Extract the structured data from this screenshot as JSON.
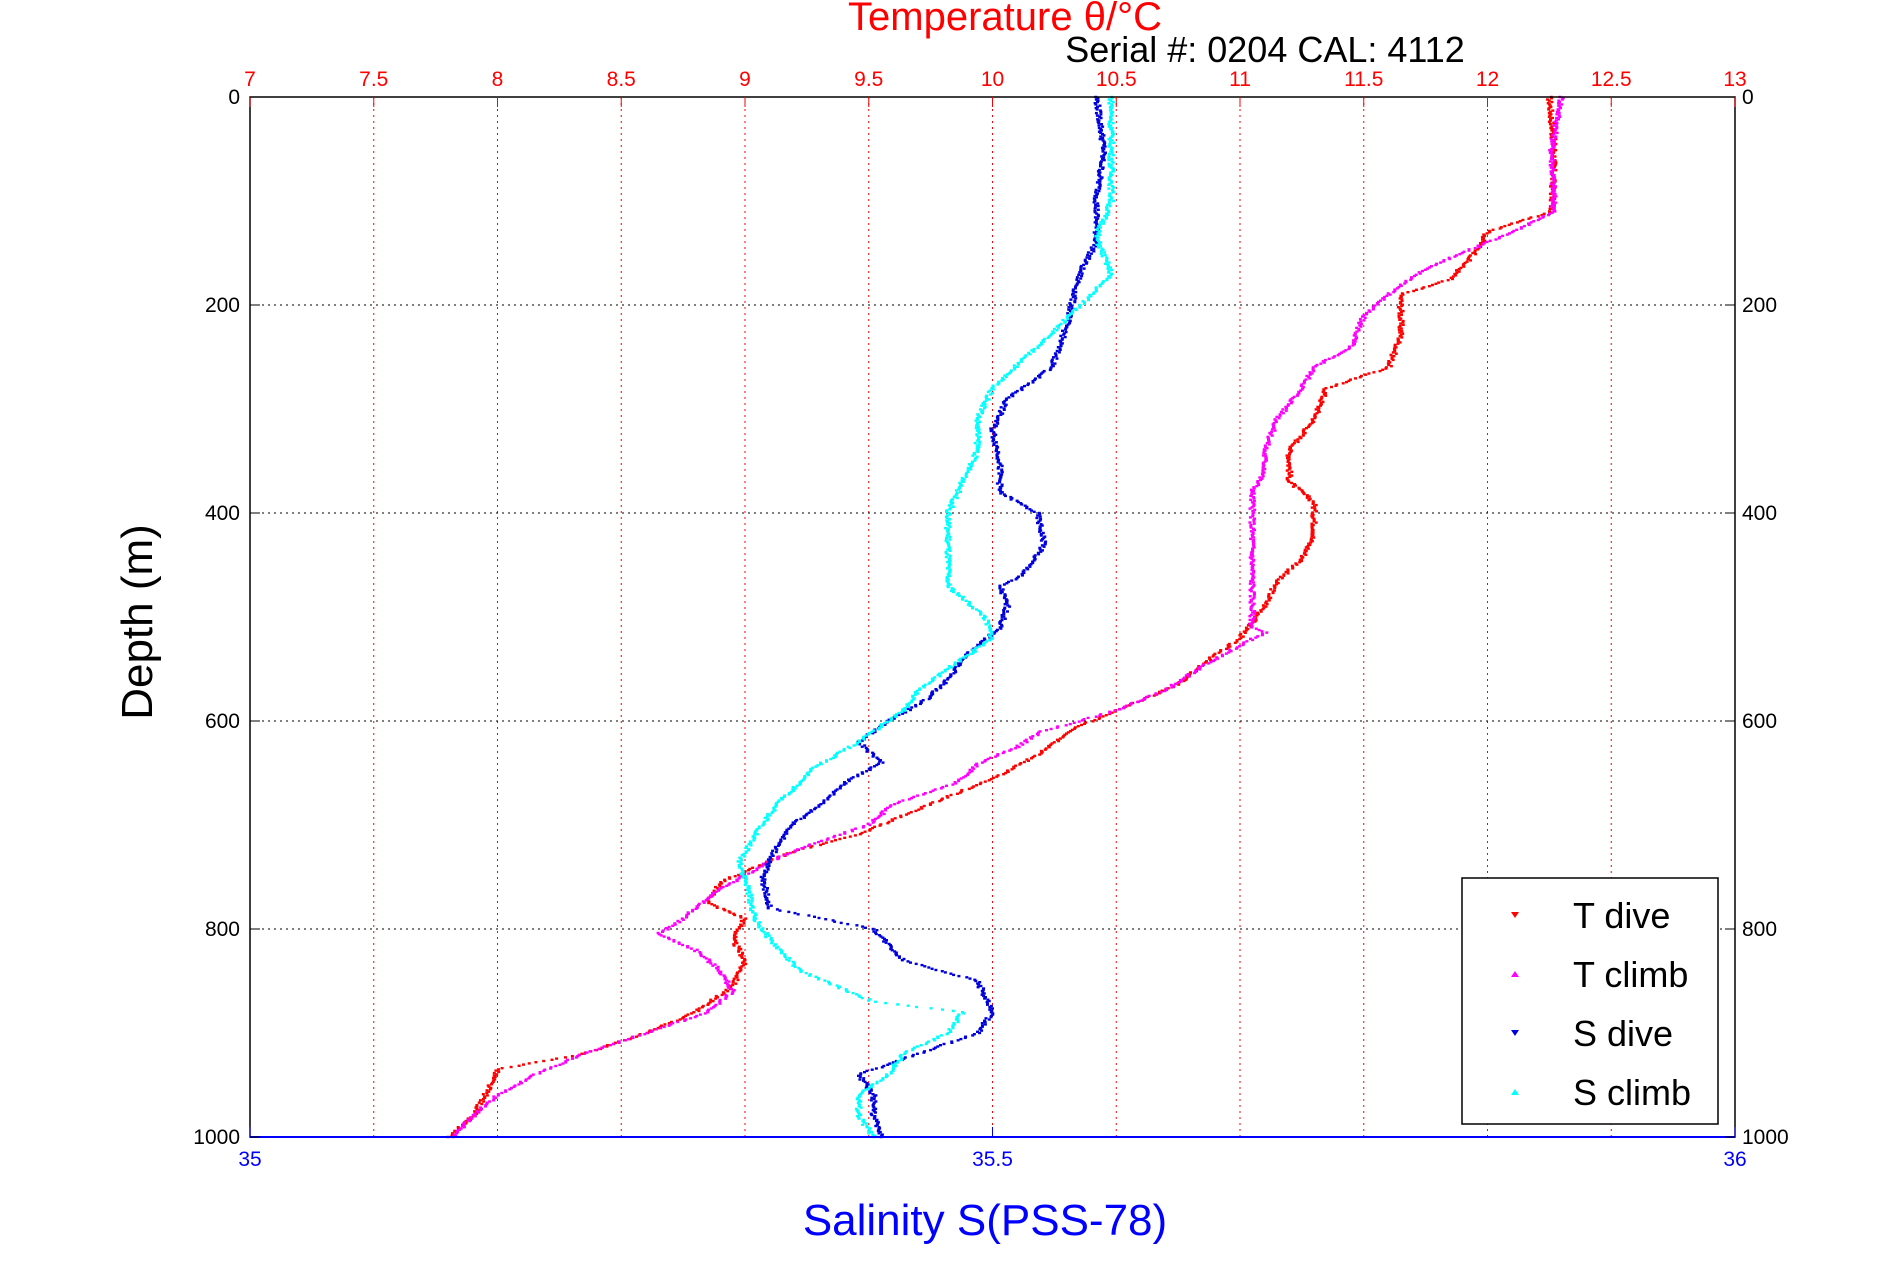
{
  "chart_data": {
    "type": "scatter",
    "title": "Temperature θ/°C",
    "subtitle": "Serial #: 0204  CAL: 4112",
    "ylabel": "Depth (m)",
    "xlabel": "Salinity S(PSS-78)",
    "depth_range": [
      0,
      1000
    ],
    "depth_ticks": [
      0,
      200,
      400,
      600,
      800,
      1000
    ],
    "temperature_range": [
      7,
      13
    ],
    "temperature_ticks": [
      7,
      7.5,
      8,
      8.5,
      9,
      9.5,
      10,
      10.5,
      11,
      11.5,
      12,
      12.5,
      13
    ],
    "salinity_range": [
      35,
      36
    ],
    "salinity_ticks": [
      35,
      35.5,
      36
    ],
    "grid": true,
    "legend_placement": "bottom-right",
    "colors": {
      "temperature_axis": "#ff0000",
      "salinity_axis": "#0000ff",
      "t_dive": "#ff0000",
      "t_climb": "#ff00ff",
      "s_dive": "#0000dd",
      "s_climb": "#00ffff"
    },
    "series": [
      {
        "name": "T dive",
        "axis": "temperature",
        "points": [
          [
            12.25,
            0
          ],
          [
            12.27,
            50
          ],
          [
            12.26,
            110
          ],
          [
            12.0,
            130
          ],
          [
            11.95,
            150
          ],
          [
            11.85,
            175
          ],
          [
            11.65,
            190
          ],
          [
            11.65,
            230
          ],
          [
            11.6,
            260
          ],
          [
            11.35,
            280
          ],
          [
            11.3,
            310
          ],
          [
            11.2,
            340
          ],
          [
            11.2,
            370
          ],
          [
            11.3,
            390
          ],
          [
            11.3,
            420
          ],
          [
            11.25,
            445
          ],
          [
            11.15,
            465
          ],
          [
            11.1,
            490
          ],
          [
            11.0,
            520
          ],
          [
            10.85,
            545
          ],
          [
            10.75,
            565
          ],
          [
            10.55,
            585
          ],
          [
            10.35,
            605
          ],
          [
            10.2,
            630
          ],
          [
            10.05,
            650
          ],
          [
            9.85,
            670
          ],
          [
            9.65,
            690
          ],
          [
            9.45,
            710
          ],
          [
            9.2,
            725
          ],
          [
            9.05,
            740
          ],
          [
            8.9,
            755
          ],
          [
            8.85,
            775
          ],
          [
            9.0,
            790
          ],
          [
            8.95,
            810
          ],
          [
            9.0,
            830
          ],
          [
            8.95,
            855
          ],
          [
            8.8,
            880
          ],
          [
            8.6,
            900
          ],
          [
            8.35,
            920
          ],
          [
            8.0,
            935
          ],
          [
            7.95,
            960
          ],
          [
            7.9,
            980
          ],
          [
            7.8,
            1000
          ]
        ]
      },
      {
        "name": "T climb",
        "axis": "temperature",
        "points": [
          [
            12.3,
            0
          ],
          [
            12.26,
            50
          ],
          [
            12.27,
            110
          ],
          [
            12.1,
            130
          ],
          [
            11.9,
            150
          ],
          [
            11.75,
            165
          ],
          [
            11.6,
            190
          ],
          [
            11.5,
            210
          ],
          [
            11.45,
            240
          ],
          [
            11.3,
            260
          ],
          [
            11.25,
            280
          ],
          [
            11.15,
            310
          ],
          [
            11.1,
            340
          ],
          [
            11.1,
            360
          ],
          [
            11.05,
            380
          ],
          [
            11.05,
            420
          ],
          [
            11.05,
            450
          ],
          [
            11.05,
            480
          ],
          [
            11.05,
            510
          ],
          [
            11.1,
            515
          ],
          [
            10.9,
            540
          ],
          [
            10.8,
            555
          ],
          [
            10.7,
            570
          ],
          [
            10.5,
            590
          ],
          [
            10.2,
            610
          ],
          [
            10.1,
            625
          ],
          [
            9.95,
            640
          ],
          [
            9.85,
            660
          ],
          [
            9.6,
            680
          ],
          [
            9.5,
            700
          ],
          [
            9.25,
            720
          ],
          [
            9.1,
            735
          ],
          [
            8.95,
            755
          ],
          [
            8.85,
            770
          ],
          [
            8.75,
            790
          ],
          [
            8.65,
            805
          ],
          [
            8.8,
            820
          ],
          [
            8.9,
            840
          ],
          [
            8.95,
            860
          ],
          [
            8.85,
            880
          ],
          [
            8.6,
            900
          ],
          [
            8.35,
            920
          ],
          [
            8.15,
            940
          ],
          [
            8.0,
            960
          ],
          [
            7.9,
            980
          ],
          [
            7.82,
            1000
          ]
        ]
      },
      {
        "name": "S dive",
        "axis": "salinity",
        "points": [
          [
            35.57,
            0
          ],
          [
            35.575,
            50
          ],
          [
            35.57,
            100
          ],
          [
            35.57,
            140
          ],
          [
            35.56,
            165
          ],
          [
            35.555,
            190
          ],
          [
            35.55,
            220
          ],
          [
            35.54,
            260
          ],
          [
            35.51,
            290
          ],
          [
            35.5,
            320
          ],
          [
            35.505,
            350
          ],
          [
            35.505,
            380
          ],
          [
            35.53,
            400
          ],
          [
            35.535,
            430
          ],
          [
            35.52,
            460
          ],
          [
            35.505,
            470
          ],
          [
            35.51,
            490
          ],
          [
            35.505,
            510
          ],
          [
            35.48,
            540
          ],
          [
            35.47,
            560
          ],
          [
            35.455,
            580
          ],
          [
            35.43,
            600
          ],
          [
            35.41,
            620
          ],
          [
            35.425,
            640
          ],
          [
            35.4,
            660
          ],
          [
            35.385,
            680
          ],
          [
            35.365,
            700
          ],
          [
            35.355,
            720
          ],
          [
            35.345,
            750
          ],
          [
            35.35,
            780
          ],
          [
            35.42,
            800
          ],
          [
            35.44,
            830
          ],
          [
            35.49,
            850
          ],
          [
            35.5,
            880
          ],
          [
            35.49,
            900
          ],
          [
            35.45,
            920
          ],
          [
            35.41,
            940
          ],
          [
            35.42,
            960
          ],
          [
            35.42,
            980
          ],
          [
            35.425,
            1000
          ]
        ]
      },
      {
        "name": "S climb",
        "axis": "salinity",
        "points": [
          [
            35.58,
            0
          ],
          [
            35.58,
            50
          ],
          [
            35.58,
            100
          ],
          [
            35.57,
            135
          ],
          [
            35.58,
            170
          ],
          [
            35.56,
            200
          ],
          [
            35.53,
            240
          ],
          [
            35.5,
            280
          ],
          [
            35.49,
            310
          ],
          [
            35.49,
            340
          ],
          [
            35.48,
            370
          ],
          [
            35.47,
            400
          ],
          [
            35.47,
            440
          ],
          [
            35.47,
            470
          ],
          [
            35.495,
            500
          ],
          [
            35.5,
            520
          ],
          [
            35.475,
            545
          ],
          [
            35.45,
            570
          ],
          [
            35.44,
            590
          ],
          [
            35.41,
            620
          ],
          [
            35.38,
            645
          ],
          [
            35.37,
            660
          ],
          [
            35.355,
            680
          ],
          [
            35.34,
            710
          ],
          [
            35.33,
            735
          ],
          [
            35.335,
            760
          ],
          [
            35.34,
            790
          ],
          [
            35.35,
            810
          ],
          [
            35.37,
            840
          ],
          [
            35.42,
            870
          ],
          [
            35.48,
            880
          ],
          [
            35.47,
            900
          ],
          [
            35.44,
            920
          ],
          [
            35.43,
            940
          ],
          [
            35.41,
            960
          ],
          [
            35.41,
            980
          ],
          [
            35.42,
            1000
          ]
        ]
      }
    ]
  }
}
